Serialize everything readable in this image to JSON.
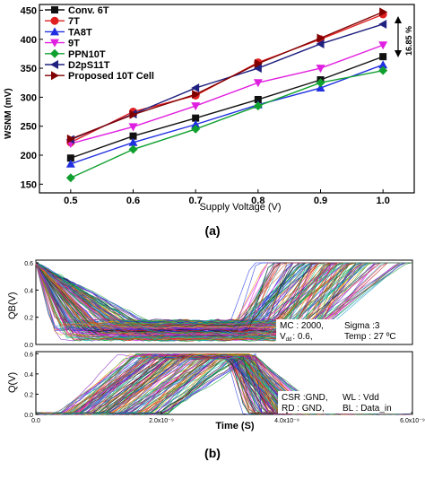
{
  "chart_data": [
    {
      "type": "line",
      "xlabel": "Supply Voltage (V)",
      "ylabel": "WSNM (mV)",
      "x": [
        0.5,
        0.6,
        0.7,
        0.8,
        0.9,
        1.0
      ],
      "xticks": [
        "0.5",
        "0.6",
        "0.7",
        "0.8",
        "0.9",
        "1.0"
      ],
      "yticks": [
        "150",
        "200",
        "250",
        "300",
        "350",
        "400",
        "450"
      ],
      "xlim": [
        0.45,
        1.05
      ],
      "ylim": [
        135,
        460
      ],
      "legend_position": "top-left",
      "series": [
        {
          "name": "Conv. 6T",
          "marker": "square",
          "color": "#111111",
          "values": [
            195,
            233,
            264,
            296,
            330,
            370
          ]
        },
        {
          "name": "7T",
          "marker": "circle",
          "color": "#e02020",
          "values": [
            222,
            275,
            303,
            360,
            400,
            443
          ]
        },
        {
          "name": "TA8T",
          "marker": "triangle-up",
          "color": "#2030e0",
          "values": [
            185,
            222,
            253,
            287,
            316,
            356
          ]
        },
        {
          "name": "9T",
          "marker": "triangle-down",
          "color": "#e020e0",
          "values": [
            220,
            249,
            285,
            325,
            350,
            390
          ]
        },
        {
          "name": "PPN10T",
          "marker": "diamond",
          "color": "#10a030",
          "values": [
            161,
            210,
            245,
            285,
            325,
            346
          ]
        },
        {
          "name": "D2pS11T",
          "marker": "triangle-left",
          "color": "#202080",
          "values": [
            227,
            271,
            316,
            350,
            392,
            426
          ]
        },
        {
          "name": "Proposed 10T Cell",
          "marker": "triangle-right",
          "color": "#800000",
          "values": [
            228,
            270,
            305,
            358,
            402,
            447
          ]
        }
      ],
      "annotation": "16.85 %",
      "panel_label": "(a)"
    },
    {
      "type": "line",
      "description_panels": [
        "QB(V)",
        "Q(V)"
      ],
      "xlabel": "Time (S)",
      "xticks": [
        "0.0",
        "2.0x10⁻⁹",
        "4.0x10⁻⁹",
        "6.0x10⁻⁹"
      ],
      "yticks": [
        "0.0",
        "0.2",
        "0.4",
        "0.6"
      ],
      "xlim": [
        0,
        6e-09
      ],
      "ylim": [
        0,
        0.62
      ],
      "top_ylabel": "QB(V)",
      "bottom_ylabel": "Q(V)",
      "top_annotation": {
        "mc": "MC : 2000,",
        "sigma": "Sigma :3",
        "v": "V",
        "vsub": "dd",
        "vval": ": 0.6,",
        "temp": "Temp : 27 ºC"
      },
      "bottom_annotation": {
        "l1a": "CSR :GND,",
        "l1b": "WL : Vdd",
        "l2a": "RD : GND,",
        "l2b": "BL : Data_in"
      },
      "panel_label": "(b)"
    }
  ],
  "colors": {
    "mc_palette": [
      "#e0201a",
      "#1a30e0",
      "#10a030",
      "#e020e0",
      "#20a0c0",
      "#e0a010",
      "#202020",
      "#8020c0",
      "#c06020",
      "#00c080"
    ]
  }
}
